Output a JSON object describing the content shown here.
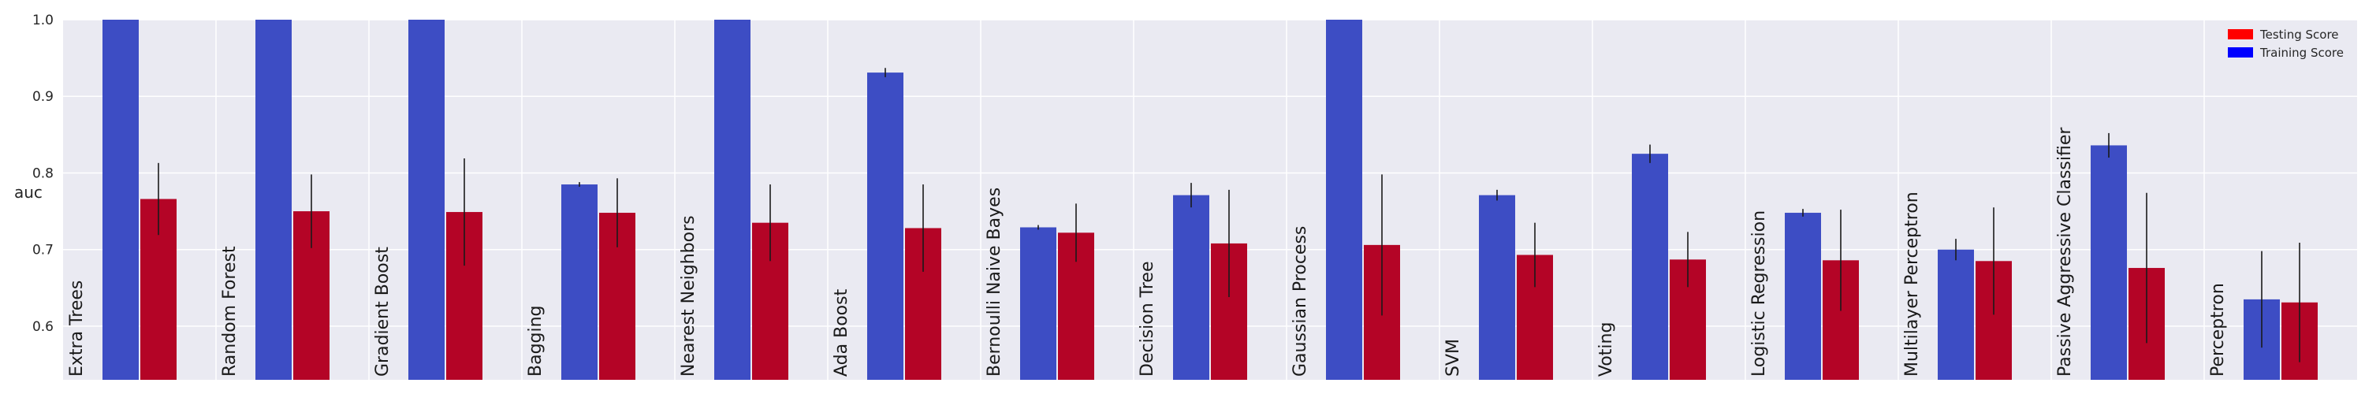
{
  "chart_data": {
    "type": "bar",
    "title": "",
    "xlabel": "",
    "ylabel": "auc",
    "ylim": [
      0.53,
      1.0
    ],
    "yticks": [
      0.6,
      0.7,
      0.8,
      0.9,
      1.0
    ],
    "ytick_labels": [
      "0.6",
      "0.7",
      "0.8",
      "0.9",
      "1.0"
    ],
    "grid": true,
    "legend_position": "top-right",
    "categories": [
      "Extra Trees",
      "Random Forest",
      "Gradient Boost",
      "Bagging",
      "Nearest Neighbors",
      "Ada Boost",
      "Bernoulli Naive Bayes",
      "Decision Tree",
      "Gaussian Process",
      "SVM",
      "Voting",
      "Logistic Regression",
      "Multilayer Perceptron",
      "Passive Aggressive Classifier",
      "Perceptron"
    ],
    "series": [
      {
        "name": "Training Score",
        "color": "#3d4dc4",
        "values": [
          1.0,
          1.0,
          1.0,
          0.785,
          1.0,
          0.931,
          0.729,
          0.771,
          1.0,
          0.771,
          0.825,
          0.748,
          0.7,
          0.836,
          0.635
        ],
        "errors": [
          0,
          0,
          0,
          0.003,
          0,
          0.006,
          0.003,
          0.016,
          0,
          0.007,
          0.012,
          0.005,
          0.014,
          0.016,
          0.063
        ]
      },
      {
        "name": "Testing Score",
        "color": "#b40426",
        "values": [
          0.766,
          0.75,
          0.749,
          0.748,
          0.735,
          0.728,
          0.722,
          0.708,
          0.706,
          0.693,
          0.687,
          0.686,
          0.685,
          0.676,
          0.631
        ],
        "errors": [
          0.047,
          0.048,
          0.07,
          0.045,
          0.05,
          0.057,
          0.038,
          0.07,
          0.092,
          0.042,
          0.036,
          0.066,
          0.07,
          0.098,
          0.078
        ]
      }
    ],
    "legend": [
      {
        "label": "Testing Score",
        "color": "#ff0000"
      },
      {
        "label": "Training Score",
        "color": "#0000ff"
      }
    ]
  }
}
